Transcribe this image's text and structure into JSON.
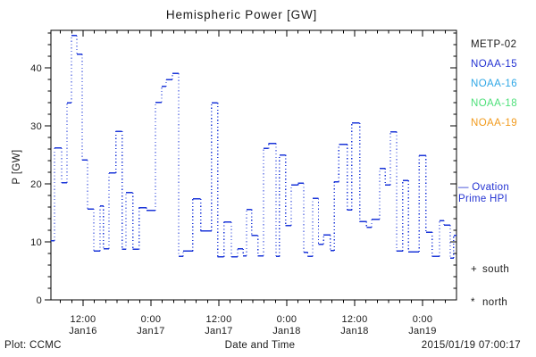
{
  "chart_data": {
    "type": "line",
    "subtype": "step-histogram",
    "title": "Hemispheric Power [GW]",
    "xlabel": "Date and Time",
    "ylabel": "P [GW]",
    "x_unit": "hours since 2015-01-16 00:00 UT",
    "x_range": [
      6.32,
      78.0
    ],
    "y_range": [
      0,
      46.5
    ],
    "grid": false,
    "legend_position": "right",
    "line_color": "#1b36d8",
    "line_style": {
      "horizontal_segments": "solid",
      "vertical_connectors": "dotted"
    },
    "x_major_ticks": [
      {
        "t": 12,
        "time": "12:00",
        "date": "Jan16"
      },
      {
        "t": 24,
        "time": "0:00",
        "date": "Jan17"
      },
      {
        "t": 36,
        "time": "12:00",
        "date": "Jan17"
      },
      {
        "t": 48,
        "time": "0:00",
        "date": "Jan18"
      },
      {
        "t": 60,
        "time": "12:00",
        "date": "Jan18"
      },
      {
        "t": 72,
        "time": "0:00",
        "date": "Jan19"
      }
    ],
    "x_minor_step_hours": 2,
    "y_major_ticks": [
      0,
      10,
      20,
      30,
      40
    ],
    "y_minor_step_gw": 2,
    "series": [
      {
        "name": "Ovation Prime HPI",
        "steps_format": [
          "t_hours_since_jan16_00ut",
          "power_gw"
        ],
        "steps": [
          [
            6.3,
            10.2
          ],
          [
            6.95,
            26.2
          ],
          [
            8.2,
            20.2
          ],
          [
            9.15,
            34.0
          ],
          [
            9.95,
            45.6
          ],
          [
            10.9,
            42.4
          ],
          [
            11.85,
            24.1
          ],
          [
            12.8,
            15.7
          ],
          [
            13.9,
            8.4
          ],
          [
            15.0,
            16.2
          ],
          [
            15.6,
            8.8
          ],
          [
            16.6,
            21.9
          ],
          [
            17.8,
            29.1
          ],
          [
            18.9,
            8.7
          ],
          [
            19.6,
            18.5
          ],
          [
            20.8,
            8.7
          ],
          [
            21.9,
            15.9
          ],
          [
            23.2,
            15.4
          ],
          [
            24.8,
            34.1
          ],
          [
            25.9,
            36.8
          ],
          [
            26.7,
            38.0
          ],
          [
            27.8,
            39.1
          ],
          [
            28.9,
            7.5
          ],
          [
            29.7,
            8.4
          ],
          [
            31.4,
            17.4
          ],
          [
            32.8,
            11.9
          ],
          [
            34.7,
            34.0
          ],
          [
            35.8,
            7.4
          ],
          [
            36.9,
            13.4
          ],
          [
            38.2,
            7.4
          ],
          [
            39.3,
            8.8
          ],
          [
            40.3,
            7.6
          ],
          [
            40.9,
            15.6
          ],
          [
            41.8,
            11.1
          ],
          [
            42.9,
            7.6
          ],
          [
            43.9,
            26.1
          ],
          [
            44.8,
            27.0
          ],
          [
            46.1,
            7.5
          ],
          [
            46.7,
            25.0
          ],
          [
            47.8,
            12.8
          ],
          [
            48.8,
            19.8
          ],
          [
            50.0,
            20.1
          ],
          [
            51.0,
            8.2
          ],
          [
            51.7,
            7.5
          ],
          [
            52.6,
            17.5
          ],
          [
            53.6,
            9.6
          ],
          [
            54.5,
            11.2
          ],
          [
            55.7,
            8.5
          ],
          [
            56.4,
            20.4
          ],
          [
            57.2,
            26.8
          ],
          [
            58.7,
            15.5
          ],
          [
            59.5,
            30.5
          ],
          [
            60.9,
            13.5
          ],
          [
            62.1,
            12.5
          ],
          [
            63.0,
            13.9
          ],
          [
            64.4,
            22.7
          ],
          [
            65.4,
            19.8
          ],
          [
            66.3,
            29.0
          ],
          [
            67.4,
            8.4
          ],
          [
            68.5,
            20.6
          ],
          [
            69.5,
            8.3
          ],
          [
            71.4,
            24.9
          ],
          [
            72.6,
            11.7
          ],
          [
            73.7,
            7.5
          ],
          [
            75.0,
            13.7
          ],
          [
            75.8,
            12.9
          ],
          [
            76.9,
            7.2
          ],
          [
            77.5,
            11.1
          ]
        ]
      }
    ]
  },
  "legend": {
    "satellites": [
      {
        "label": "METP-02",
        "color": "#1a1a1a"
      },
      {
        "label": "NOAA-15",
        "color": "#2433d2"
      },
      {
        "label": "NOAA-16",
        "color": "#2fa7e6"
      },
      {
        "label": "NOAA-18",
        "color": "#4ee07a"
      },
      {
        "label": "NOAA-19",
        "color": "#f29b1d"
      }
    ],
    "ovation": {
      "line1": "— Ovation",
      "line2": "Prime HPI",
      "color": "#2433d2"
    },
    "markers": [
      {
        "symbol": "+",
        "label": "south"
      },
      {
        "symbol": "*",
        "label": "north"
      }
    ]
  },
  "footer": {
    "plot_credit": "Plot: CCMC",
    "timestamp": "2015/01/19 07:00:17"
  }
}
